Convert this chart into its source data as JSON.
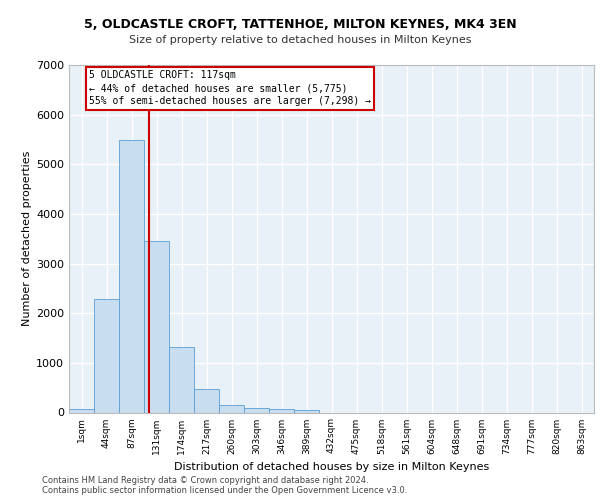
{
  "title1": "5, OLDCASTLE CROFT, TATTENHOE, MILTON KEYNES, MK4 3EN",
  "title2": "Size of property relative to detached houses in Milton Keynes",
  "xlabel": "Distribution of detached houses by size in Milton Keynes",
  "ylabel": "Number of detached properties",
  "bar_labels": [
    "1sqm",
    "44sqm",
    "87sqm",
    "131sqm",
    "174sqm",
    "217sqm",
    "260sqm",
    "303sqm",
    "346sqm",
    "389sqm",
    "432sqm",
    "475sqm",
    "518sqm",
    "561sqm",
    "604sqm",
    "648sqm",
    "691sqm",
    "734sqm",
    "777sqm",
    "820sqm",
    "863sqm"
  ],
  "bar_values": [
    80,
    2280,
    5480,
    3450,
    1310,
    470,
    160,
    100,
    70,
    50,
    0,
    0,
    0,
    0,
    0,
    0,
    0,
    0,
    0,
    0,
    0
  ],
  "bar_color": "#c9ddf0",
  "bar_edge_color": "#5a9fd4",
  "vline_color": "#cc0000",
  "annotation_title": "5 OLDCASTLE CROFT: 117sqm",
  "annotation_line1": "← 44% of detached houses are smaller (5,775)",
  "annotation_line2": "55% of semi-detached houses are larger (7,298) →",
  "annotation_box_color": "#cc0000",
  "ylim": [
    0,
    7000
  ],
  "yticks": [
    0,
    1000,
    2000,
    3000,
    4000,
    5000,
    6000,
    7000
  ],
  "bg_color": "#e8f0f8",
  "grid_color": "#ffffff",
  "fig_bg_color": "#ffffff",
  "footer1": "Contains HM Land Registry data © Crown copyright and database right 2024.",
  "footer2": "Contains public sector information licensed under the Open Government Licence v3.0."
}
